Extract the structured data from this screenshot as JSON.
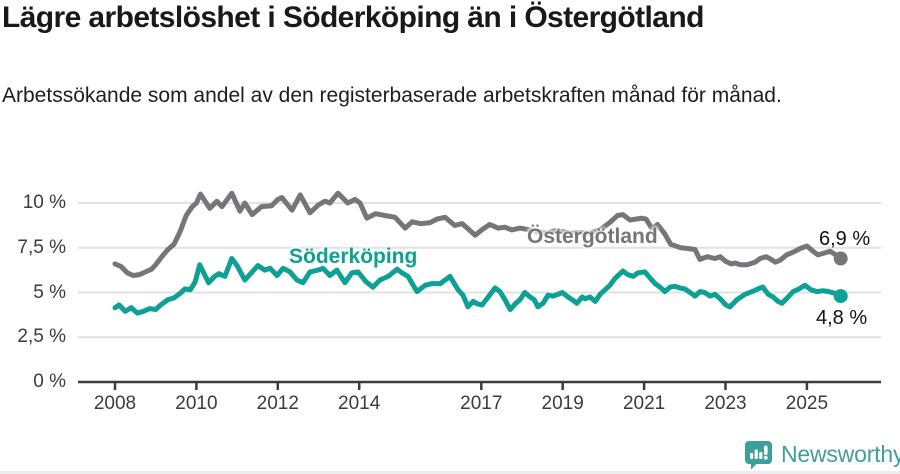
{
  "header": {
    "title": "Lägre arbetslöshet i Söderköping än i Östergötland",
    "subtitle": "Arbetssökande som andel av den registerbaserade arbetskraften månad för månad."
  },
  "footer": {
    "brand": "Newsworthy",
    "logo_icon": "bar-chart-speech-bubble-icon",
    "brand_color": "#429E9A"
  },
  "chart_data": {
    "type": "line",
    "title": "Lägre arbetslöshet i Söderköping än i Östergötland",
    "subtitle": "Arbetssökande som andel av den registerbaserade arbetskraften månad för månad.",
    "unit": "%",
    "grid": true,
    "legend_position": "inline-labels-on-lines",
    "x_axis": {
      "ticks": [
        {
          "value": 2008,
          "label": "2008"
        },
        {
          "value": 2010,
          "label": "2010"
        },
        {
          "value": 2012,
          "label": "2012"
        },
        {
          "value": 2014,
          "label": "2014"
        },
        {
          "value": 2017,
          "label": "2017"
        },
        {
          "value": 2019,
          "label": "2019"
        },
        {
          "value": 2021,
          "label": "2021"
        },
        {
          "value": 2023,
          "label": "2023"
        },
        {
          "value": 2025,
          "label": "2025"
        }
      ],
      "range": [
        2007.1,
        2026.8
      ]
    },
    "y_axis": {
      "ticks": [
        {
          "value": 0,
          "label": "0 %"
        },
        {
          "value": 2.5,
          "label": "2,5 %"
        },
        {
          "value": 5,
          "label": "5 %"
        },
        {
          "value": 7.5,
          "label": "7,5 %"
        },
        {
          "value": 10,
          "label": "10 %"
        }
      ],
      "range": [
        0,
        11.2
      ]
    },
    "series": [
      {
        "name": "Östergötland",
        "color": "#75757C",
        "end_label": "6,9 %",
        "last_value": 6.9,
        "points": [
          [
            2008.0,
            6.6
          ],
          [
            2008.15,
            6.45
          ],
          [
            2008.3,
            6.1
          ],
          [
            2008.45,
            5.95
          ],
          [
            2008.6,
            6.0
          ],
          [
            2008.75,
            6.15
          ],
          [
            2008.9,
            6.3
          ],
          [
            2009.0,
            6.55
          ],
          [
            2009.15,
            7.0
          ],
          [
            2009.3,
            7.4
          ],
          [
            2009.45,
            7.7
          ],
          [
            2009.6,
            8.4
          ],
          [
            2009.75,
            9.3
          ],
          [
            2009.9,
            9.8
          ],
          [
            2010.0,
            10.0
          ],
          [
            2010.1,
            10.5
          ],
          [
            2010.33,
            9.7
          ],
          [
            2010.5,
            10.1
          ],
          [
            2010.63,
            9.8
          ],
          [
            2010.87,
            10.55
          ],
          [
            2011.07,
            9.55
          ],
          [
            2011.19,
            10.0
          ],
          [
            2011.37,
            9.35
          ],
          [
            2011.6,
            9.8
          ],
          [
            2011.85,
            9.85
          ],
          [
            2012.0,
            10.2
          ],
          [
            2012.1,
            10.3
          ],
          [
            2012.35,
            9.6
          ],
          [
            2012.55,
            10.45
          ],
          [
            2012.79,
            9.45
          ],
          [
            2013.0,
            9.9
          ],
          [
            2013.16,
            10.1
          ],
          [
            2013.28,
            10.0
          ],
          [
            2013.48,
            10.55
          ],
          [
            2013.72,
            10.0
          ],
          [
            2013.9,
            10.2
          ],
          [
            2014.02,
            10.0
          ],
          [
            2014.19,
            9.15
          ],
          [
            2014.4,
            9.4
          ],
          [
            2014.63,
            9.3
          ],
          [
            2014.88,
            9.2
          ],
          [
            2015.13,
            8.6
          ],
          [
            2015.3,
            8.95
          ],
          [
            2015.5,
            8.85
          ],
          [
            2015.74,
            8.9
          ],
          [
            2015.91,
            9.1
          ],
          [
            2016.11,
            9.2
          ],
          [
            2016.35,
            8.75
          ],
          [
            2016.53,
            8.85
          ],
          [
            2016.85,
            8.2
          ],
          [
            2017.04,
            8.55
          ],
          [
            2017.21,
            8.8
          ],
          [
            2017.41,
            8.6
          ],
          [
            2017.58,
            8.65
          ],
          [
            2017.75,
            8.5
          ],
          [
            2017.95,
            8.6
          ],
          [
            2018.2,
            8.5
          ],
          [
            2018.45,
            8.35
          ],
          [
            2018.6,
            8.3
          ],
          [
            2018.8,
            8.45
          ],
          [
            2019.0,
            8.4
          ],
          [
            2019.2,
            8.3
          ],
          [
            2019.4,
            8.35
          ],
          [
            2019.6,
            8.3
          ],
          [
            2019.8,
            8.4
          ],
          [
            2019.95,
            8.55
          ],
          [
            2020.15,
            8.9
          ],
          [
            2020.35,
            9.3
          ],
          [
            2020.48,
            9.35
          ],
          [
            2020.65,
            9.05
          ],
          [
            2020.8,
            9.1
          ],
          [
            2020.93,
            9.15
          ],
          [
            2021.05,
            9.1
          ],
          [
            2021.2,
            8.55
          ],
          [
            2021.33,
            8.8
          ],
          [
            2021.5,
            8.3
          ],
          [
            2021.65,
            7.7
          ],
          [
            2021.9,
            7.5
          ],
          [
            2022.1,
            7.45
          ],
          [
            2022.25,
            7.4
          ],
          [
            2022.37,
            6.85
          ],
          [
            2022.55,
            7.0
          ],
          [
            2022.74,
            6.9
          ],
          [
            2022.87,
            7.0
          ],
          [
            2023.0,
            6.75
          ],
          [
            2023.14,
            6.6
          ],
          [
            2023.24,
            6.65
          ],
          [
            2023.36,
            6.55
          ],
          [
            2023.53,
            6.55
          ],
          [
            2023.73,
            6.7
          ],
          [
            2023.85,
            6.9
          ],
          [
            2024.0,
            7.0
          ],
          [
            2024.12,
            6.85
          ],
          [
            2024.22,
            6.7
          ],
          [
            2024.34,
            6.8
          ],
          [
            2024.5,
            7.1
          ],
          [
            2024.66,
            7.25
          ],
          [
            2024.83,
            7.45
          ],
          [
            2025.0,
            7.6
          ],
          [
            2025.15,
            7.3
          ],
          [
            2025.27,
            7.1
          ],
          [
            2025.42,
            7.2
          ],
          [
            2025.57,
            7.3
          ],
          [
            2025.71,
            7.1
          ],
          [
            2025.83,
            6.9
          ]
        ]
      },
      {
        "name": "Söderköping",
        "color": "#0DA094",
        "end_label": "4,8 %",
        "last_value": 4.8,
        "points": [
          [
            2008.0,
            4.15
          ],
          [
            2008.1,
            4.3
          ],
          [
            2008.25,
            3.95
          ],
          [
            2008.4,
            4.15
          ],
          [
            2008.55,
            3.85
          ],
          [
            2008.7,
            3.95
          ],
          [
            2008.85,
            4.1
          ],
          [
            2009.0,
            4.05
          ],
          [
            2009.12,
            4.3
          ],
          [
            2009.3,
            4.6
          ],
          [
            2009.45,
            4.7
          ],
          [
            2009.6,
            4.95
          ],
          [
            2009.72,
            5.2
          ],
          [
            2009.85,
            5.15
          ],
          [
            2009.97,
            5.6
          ],
          [
            2010.08,
            6.55
          ],
          [
            2010.3,
            5.55
          ],
          [
            2010.45,
            5.9
          ],
          [
            2010.55,
            6.05
          ],
          [
            2010.7,
            5.9
          ],
          [
            2010.87,
            6.9
          ],
          [
            2011.0,
            6.5
          ],
          [
            2011.19,
            5.7
          ],
          [
            2011.37,
            6.15
          ],
          [
            2011.51,
            6.5
          ],
          [
            2011.68,
            6.25
          ],
          [
            2011.81,
            6.35
          ],
          [
            2011.98,
            5.95
          ],
          [
            2012.13,
            6.35
          ],
          [
            2012.3,
            6.15
          ],
          [
            2012.47,
            5.7
          ],
          [
            2012.62,
            5.55
          ],
          [
            2012.79,
            6.15
          ],
          [
            2012.99,
            6.25
          ],
          [
            2013.11,
            6.35
          ],
          [
            2013.28,
            5.95
          ],
          [
            2013.45,
            6.25
          ],
          [
            2013.65,
            5.55
          ],
          [
            2013.82,
            6.1
          ],
          [
            2013.97,
            6.15
          ],
          [
            2014.17,
            5.6
          ],
          [
            2014.34,
            5.3
          ],
          [
            2014.51,
            5.7
          ],
          [
            2014.71,
            5.9
          ],
          [
            2014.93,
            6.3
          ],
          [
            2015.05,
            6.1
          ],
          [
            2015.2,
            5.9
          ],
          [
            2015.42,
            5.05
          ],
          [
            2015.62,
            5.4
          ],
          [
            2015.79,
            5.5
          ],
          [
            2015.99,
            5.5
          ],
          [
            2016.23,
            5.9
          ],
          [
            2016.43,
            5.15
          ],
          [
            2016.55,
            4.85
          ],
          [
            2016.67,
            4.2
          ],
          [
            2016.8,
            4.5
          ],
          [
            2016.92,
            4.35
          ],
          [
            2017.02,
            4.3
          ],
          [
            2017.17,
            4.75
          ],
          [
            2017.34,
            5.25
          ],
          [
            2017.46,
            5.05
          ],
          [
            2017.58,
            4.6
          ],
          [
            2017.71,
            4.05
          ],
          [
            2017.85,
            4.4
          ],
          [
            2017.95,
            4.6
          ],
          [
            2018.07,
            5.0
          ],
          [
            2018.2,
            4.75
          ],
          [
            2018.3,
            4.6
          ],
          [
            2018.39,
            4.2
          ],
          [
            2018.52,
            4.4
          ],
          [
            2018.64,
            4.85
          ],
          [
            2018.76,
            4.8
          ],
          [
            2018.89,
            4.9
          ],
          [
            2018.99,
            5.0
          ],
          [
            2019.13,
            4.75
          ],
          [
            2019.23,
            4.6
          ],
          [
            2019.35,
            4.4
          ],
          [
            2019.48,
            4.75
          ],
          [
            2019.55,
            4.65
          ],
          [
            2019.67,
            4.75
          ],
          [
            2019.8,
            4.5
          ],
          [
            2019.92,
            4.9
          ],
          [
            2020.04,
            5.15
          ],
          [
            2020.16,
            5.4
          ],
          [
            2020.29,
            5.8
          ],
          [
            2020.41,
            6.05
          ],
          [
            2020.48,
            6.2
          ],
          [
            2020.6,
            6.0
          ],
          [
            2020.73,
            5.9
          ],
          [
            2020.85,
            6.1
          ],
          [
            2021.02,
            6.15
          ],
          [
            2021.15,
            5.8
          ],
          [
            2021.27,
            5.5
          ],
          [
            2021.39,
            5.3
          ],
          [
            2021.51,
            5.05
          ],
          [
            2021.64,
            5.3
          ],
          [
            2021.76,
            5.35
          ],
          [
            2021.88,
            5.25
          ],
          [
            2022.0,
            5.2
          ],
          [
            2022.13,
            5.0
          ],
          [
            2022.25,
            4.8
          ],
          [
            2022.37,
            5.05
          ],
          [
            2022.49,
            5.0
          ],
          [
            2022.62,
            4.8
          ],
          [
            2022.74,
            4.9
          ],
          [
            2022.87,
            4.65
          ],
          [
            2023.01,
            4.3
          ],
          [
            2023.11,
            4.2
          ],
          [
            2023.28,
            4.6
          ],
          [
            2023.48,
            4.9
          ],
          [
            2023.65,
            5.05
          ],
          [
            2023.8,
            5.2
          ],
          [
            2023.92,
            5.3
          ],
          [
            2024.05,
            4.9
          ],
          [
            2024.17,
            4.75
          ],
          [
            2024.29,
            4.5
          ],
          [
            2024.39,
            4.4
          ],
          [
            2024.54,
            4.75
          ],
          [
            2024.66,
            5.05
          ],
          [
            2024.81,
            5.2
          ],
          [
            2024.95,
            5.4
          ],
          [
            2025.1,
            5.15
          ],
          [
            2025.25,
            5.05
          ],
          [
            2025.4,
            5.1
          ],
          [
            2025.54,
            5.05
          ],
          [
            2025.69,
            4.95
          ],
          [
            2025.83,
            4.8
          ]
        ]
      }
    ]
  }
}
